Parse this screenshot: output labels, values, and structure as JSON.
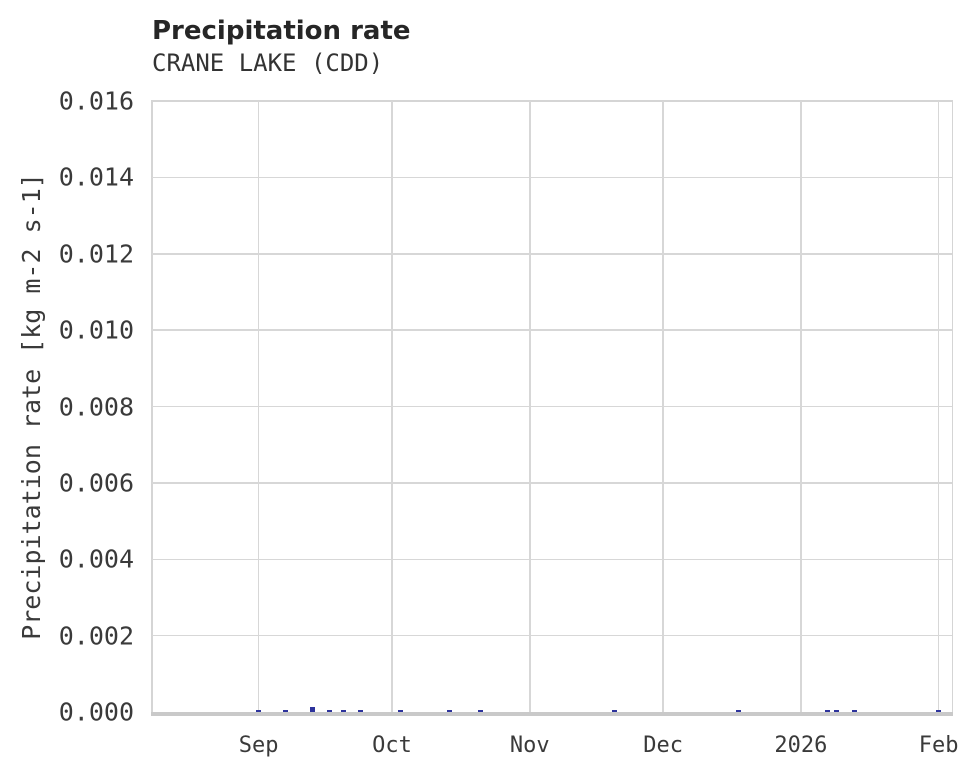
{
  "chart_data": {
    "type": "bar",
    "title": "Precipitation rate",
    "subtitle": "CRANE LAKE (CDD)",
    "xlabel": "",
    "ylabel": "Precipitation rate [kg m-2 s-1]",
    "ylim": [
      0,
      0.016
    ],
    "grid": true,
    "legend": false,
    "background_color": "#ffffff",
    "grid_color": "#d7d7d7",
    "axis_color": "#c9c9c9",
    "text_color": "#3a3a3a",
    "bar_color": "#2d339c",
    "x_range": [
      "2025-08-08",
      "2026-02-04"
    ],
    "yticks": [
      {
        "value": 0.0,
        "label": "0.000"
      },
      {
        "value": 0.002,
        "label": "0.002"
      },
      {
        "value": 0.004,
        "label": "0.004"
      },
      {
        "value": 0.006,
        "label": "0.006"
      },
      {
        "value": 0.008,
        "label": "0.008"
      },
      {
        "value": 0.01,
        "label": "0.010"
      },
      {
        "value": 0.012,
        "label": "0.012"
      },
      {
        "value": 0.014,
        "label": "0.014"
      },
      {
        "value": 0.016,
        "label": "0.016"
      }
    ],
    "xticks": [
      {
        "date": "2025-09-01",
        "label": "Sep"
      },
      {
        "date": "2025-10-01",
        "label": "Oct"
      },
      {
        "date": "2025-11-01",
        "label": "Nov"
      },
      {
        "date": "2025-12-01",
        "label": "Dec"
      },
      {
        "date": "2026-01-01",
        "label": "2026"
      },
      {
        "date": "2026-02-01",
        "label": "Feb"
      }
    ],
    "series": [
      {
        "name": "Precipitation rate",
        "color": "#2d339c",
        "points": [
          {
            "date": "2025-09-01",
            "value": 6e-05
          },
          {
            "date": "2025-09-07",
            "value": 5e-05
          },
          {
            "date": "2025-09-13",
            "value": 0.00013
          },
          {
            "date": "2025-09-17",
            "value": 6e-05
          },
          {
            "date": "2025-09-20",
            "value": 6e-05
          },
          {
            "date": "2025-09-24",
            "value": 5e-05
          },
          {
            "date": "2025-10-03",
            "value": 5e-05
          },
          {
            "date": "2025-10-14",
            "value": 6e-05
          },
          {
            "date": "2025-10-21",
            "value": 5e-05
          },
          {
            "date": "2025-11-20",
            "value": 5e-05
          },
          {
            "date": "2025-12-18",
            "value": 4e-05
          },
          {
            "date": "2026-01-07",
            "value": 6e-05
          },
          {
            "date": "2026-01-09",
            "value": 6e-05
          },
          {
            "date": "2026-01-13",
            "value": 5e-05
          },
          {
            "date": "2026-02-01",
            "value": 6e-05
          }
        ]
      }
    ]
  }
}
